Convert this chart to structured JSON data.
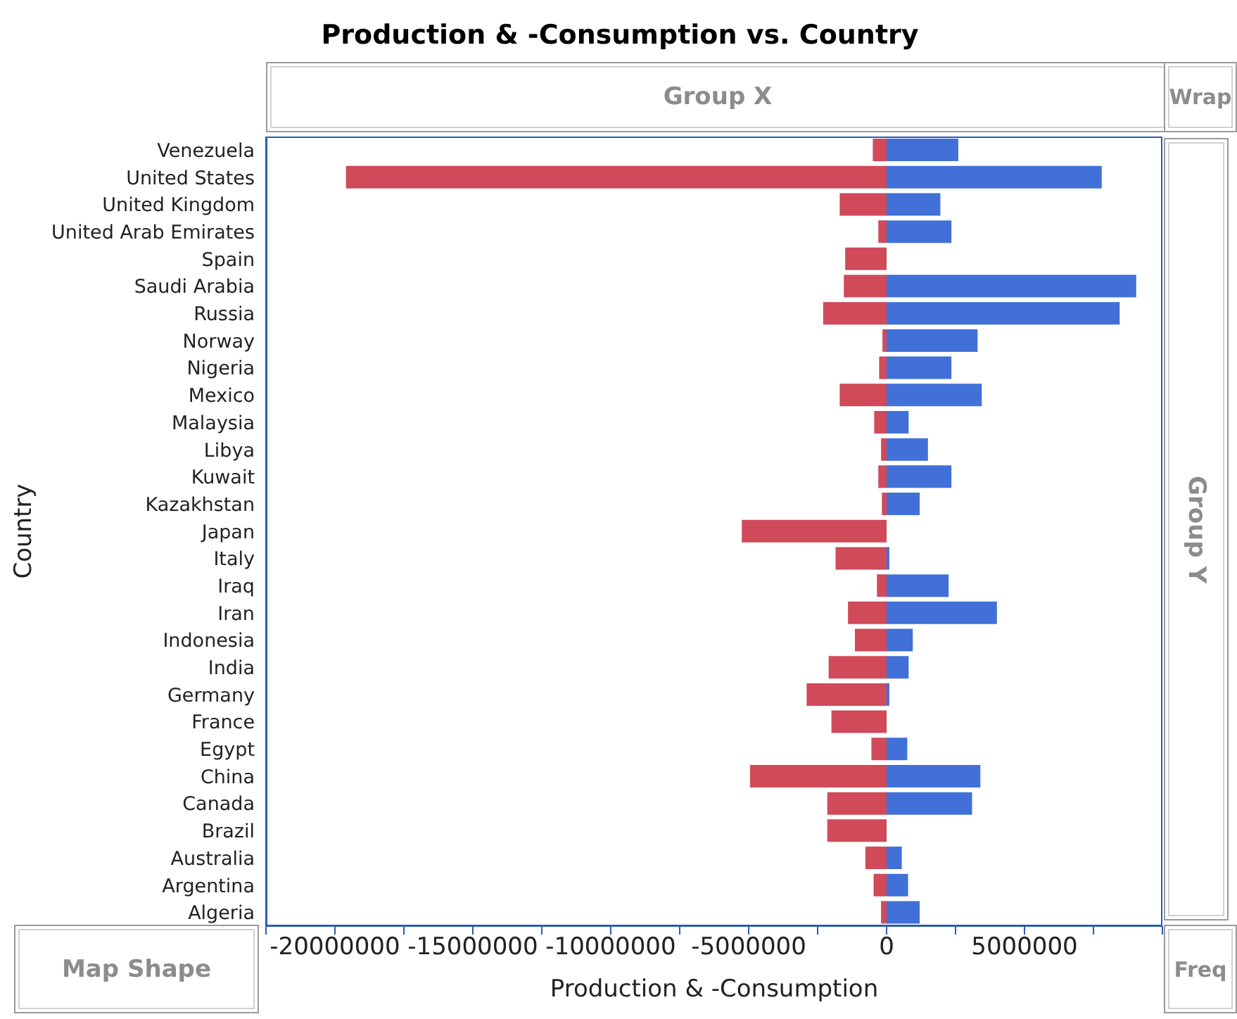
{
  "chart_data": {
    "type": "bar",
    "orientation": "horizontal",
    "stacked": true,
    "title": "Production & -Consumption vs. Country",
    "xlabel": "Production & -Consumption",
    "ylabel": "Country",
    "categories": [
      "Venezuela",
      "United States",
      "United Kingdom",
      "United Arab Emirates",
      "Spain",
      "Saudi Arabia",
      "Russia",
      "Norway",
      "Nigeria",
      "Mexico",
      "Malaysia",
      "Libya",
      "Kuwait",
      "Kazakhstan",
      "Japan",
      "Italy",
      "Iraq",
      "Iran",
      "Indonesia",
      "India",
      "Germany",
      "France",
      "Egypt",
      "China",
      "Canada",
      "Brazil",
      "Australia",
      "Argentina",
      "Algeria"
    ],
    "series": [
      {
        "color": "#d04a5a",
        "values": [
          -500000,
          -19600000,
          -1700000,
          -300000,
          -1500000,
          -1550000,
          -2300000,
          -150000,
          -270000,
          -1700000,
          -450000,
          -200000,
          -300000,
          -170000,
          -5250000,
          -1850000,
          -350000,
          -1400000,
          -1150000,
          -2100000,
          -2900000,
          -2000000,
          -550000,
          -4950000,
          -2150000,
          -2150000,
          -770000,
          -470000,
          -200000
        ]
      },
      {
        "color": "#4170d8",
        "values": [
          2600000,
          7800000,
          1950000,
          2350000,
          0,
          9050000,
          8450000,
          3300000,
          2350000,
          3450000,
          800000,
          1500000,
          2350000,
          1200000,
          0,
          100000,
          2250000,
          4000000,
          950000,
          800000,
          100000,
          0,
          750000,
          3400000,
          3100000,
          0,
          550000,
          780000,
          1200000
        ]
      }
    ],
    "xlim": [
      -22500000,
      10000000
    ],
    "xticks": [
      {
        "value": -22500000,
        "label": null
      },
      -20000000,
      {
        "value": -17500000,
        "label": null
      },
      -15000000,
      {
        "value": -12500000,
        "label": null
      },
      -10000000,
      {
        "value": -7500000,
        "label": null
      },
      -5000000,
      {
        "value": -2500000,
        "label": null
      },
      0,
      {
        "value": 2500000,
        "label": null
      },
      5000000,
      {
        "value": 7500000,
        "label": null
      },
      {
        "value": 10000000,
        "label": null
      }
    ],
    "annotations": [
      "Group X",
      "Wrap",
      "Group Y",
      "Map Shape",
      "Freq"
    ]
  }
}
